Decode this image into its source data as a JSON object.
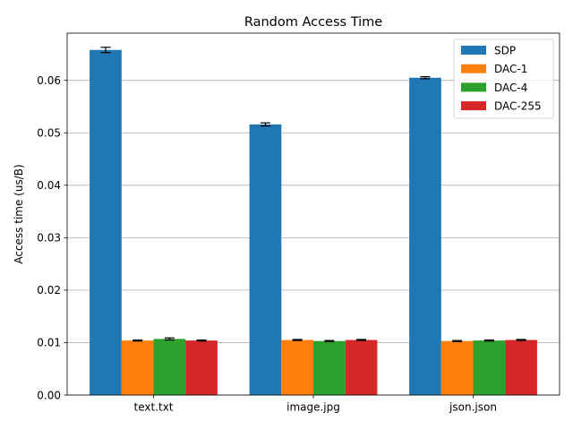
{
  "chart_data": {
    "type": "bar",
    "title": "Random Access Time",
    "xlabel": "",
    "ylabel": "Access time (us/B)",
    "categories": [
      "text.txt",
      "image.jpg",
      "json.json"
    ],
    "ylim": [
      0,
      0.069
    ],
    "yticks": [
      0.0,
      0.01,
      0.02,
      0.03,
      0.04,
      0.05,
      0.06
    ],
    "ytick_labels": [
      "0.00",
      "0.01",
      "0.02",
      "0.03",
      "0.04",
      "0.05",
      "0.06"
    ],
    "grid": "y",
    "legend": "top-right",
    "series": [
      {
        "name": "SDP",
        "color": "#1f77b4",
        "values": [
          0.0658,
          0.0516,
          0.0605
        ],
        "errors": [
          0.0005,
          0.0003,
          0.0002
        ]
      },
      {
        "name": "DAC-1",
        "color": "#ff7f0e",
        "values": [
          0.0104,
          0.0105,
          0.0103
        ],
        "errors": [
          0.0001,
          0.0001,
          0.0001
        ]
      },
      {
        "name": "DAC-4",
        "color": "#2ca02c",
        "values": [
          0.0107,
          0.0103,
          0.0104
        ],
        "errors": [
          0.0002,
          0.0001,
          0.0001
        ]
      },
      {
        "name": "DAC-255",
        "color": "#d62728",
        "values": [
          0.0104,
          0.0105,
          0.0105
        ],
        "errors": [
          0.0001,
          0.0001,
          0.0001
        ]
      }
    ]
  }
}
